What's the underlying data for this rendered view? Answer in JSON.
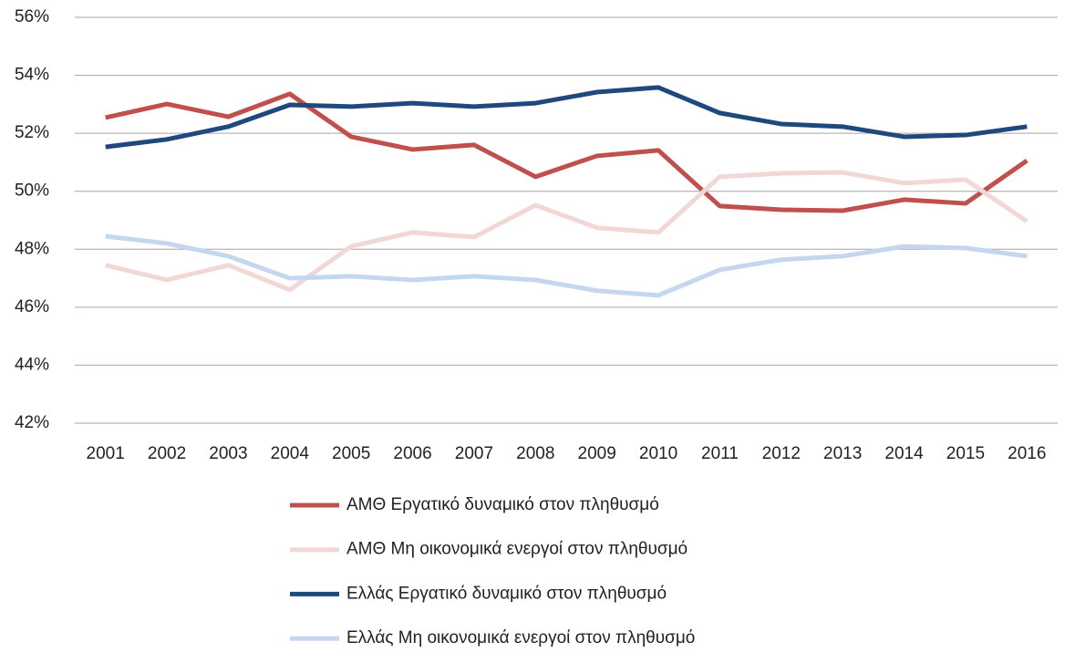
{
  "chart_data": {
    "type": "line",
    "categories": [
      "2001",
      "2002",
      "2003",
      "2004",
      "2005",
      "2006",
      "2007",
      "2008",
      "2009",
      "2010",
      "2011",
      "2012",
      "2013",
      "2014",
      "2015",
      "2016"
    ],
    "series": [
      {
        "name": "ΑΜΘ Εργατικό δυναμικό στον πληθυσμό",
        "color": "#c0504d",
        "values": [
          52.54,
          53.01,
          52.57,
          53.36,
          51.88,
          51.44,
          51.6,
          50.5,
          51.22,
          51.41,
          49.49,
          49.36,
          49.33,
          49.71,
          49.58,
          51.06
        ]
      },
      {
        "name": "ΑΜΘ Μη οικονομικά ενεργοί στον πληθυσμό",
        "color": "#f2d7d7",
        "values": [
          47.45,
          46.94,
          47.45,
          46.6,
          48.1,
          48.58,
          48.42,
          49.52,
          48.74,
          48.58,
          50.5,
          50.62,
          50.65,
          50.28,
          50.4,
          48.96
        ]
      },
      {
        "name": "Ελλάς Εργατικό δυναμικό στον πληθυσμό",
        "color": "#1f497d",
        "values": [
          51.53,
          51.79,
          52.23,
          52.98,
          52.92,
          53.04,
          52.92,
          53.04,
          53.42,
          53.58,
          52.7,
          52.32,
          52.23,
          51.88,
          51.94,
          52.23
        ]
      },
      {
        "name": "Ελλάς Μη οικονομικά ενεργοί στον πληθυσμό",
        "color": "#c5d7ee",
        "values": [
          48.45,
          48.2,
          47.76,
          47.0,
          47.07,
          46.94,
          47.07,
          46.94,
          46.57,
          46.41,
          47.29,
          47.64,
          47.76,
          48.1,
          48.04,
          47.76
        ]
      }
    ],
    "ylim": [
      42,
      56
    ],
    "yticks": [
      {
        "value": 42,
        "label": "42%"
      },
      {
        "value": 44,
        "label": "44%"
      },
      {
        "value": 46,
        "label": "46%"
      },
      {
        "value": 48,
        "label": "48%"
      },
      {
        "value": 50,
        "label": "50%"
      },
      {
        "value": 52,
        "label": "52%"
      },
      {
        "value": 54,
        "label": "54%"
      },
      {
        "value": 56,
        "label": "56%"
      }
    ],
    "grid": true,
    "legend": "bottom"
  }
}
